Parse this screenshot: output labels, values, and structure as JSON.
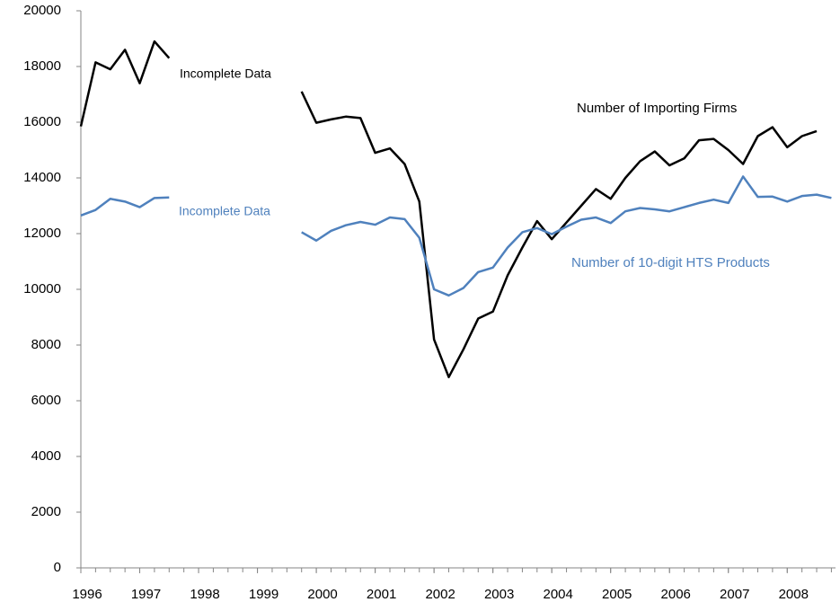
{
  "chart_data": {
    "type": "line",
    "x": [
      1996,
      1996.25,
      1996.5,
      1996.75,
      1997,
      1997.25,
      1997.5,
      1997.75,
      1998,
      1998.25,
      1998.5,
      1998.75,
      1999,
      1999.25,
      1999.5,
      1999.75,
      2000,
      2000.25,
      2000.5,
      2000.75,
      2001,
      2001.25,
      2001.5,
      2001.75,
      2002,
      2002.25,
      2002.5,
      2002.75,
      2003,
      2003.25,
      2003.5,
      2003.75,
      2004,
      2004.25,
      2004.5,
      2004.75,
      2005,
      2005.25,
      2005.5,
      2005.75,
      2006,
      2006.25,
      2006.5,
      2006.75,
      2007,
      2007.25,
      2007.5,
      2007.75,
      2008,
      2008.25,
      2008.5,
      2008.75
    ],
    "series": [
      {
        "name": "Number of Importing Firms",
        "color": "#000000",
        "values": [
          15850,
          18150,
          17900,
          18600,
          17400,
          18900,
          18300,
          null,
          null,
          null,
          null,
          null,
          null,
          null,
          null,
          17100,
          15980,
          16100,
          16200,
          16150,
          14900,
          15060,
          14500,
          13150,
          8200,
          6850,
          7850,
          8950,
          9200,
          10500,
          11500,
          12450,
          11800,
          12400,
          13000,
          13600,
          13250,
          14000,
          14600,
          14950,
          14450,
          14700,
          15350,
          15400,
          15000,
          14500,
          15500,
          15820,
          15100,
          15500,
          15680,
          null
        ]
      },
      {
        "name": "Number of 10-digit HTS Products",
        "color": "#4f81bd",
        "values": [
          12650,
          12850,
          13250,
          13150,
          12950,
          13280,
          13300,
          null,
          null,
          null,
          null,
          null,
          null,
          null,
          null,
          12050,
          11750,
          12100,
          12300,
          12420,
          12320,
          12580,
          12520,
          11850,
          10000,
          9780,
          10050,
          10620,
          10780,
          11500,
          12050,
          12200,
          11980,
          12250,
          12500,
          12580,
          12380,
          12800,
          12920,
          12870,
          12800,
          12950,
          13100,
          13220,
          13100,
          14050,
          13320,
          13330,
          13150,
          13350,
          13400,
          13280
        ]
      }
    ],
    "annotations": [
      "Incomplete Data",
      "Incomplete Data"
    ],
    "xlim": [
      1996,
      2008.82
    ],
    "xticks": [
      1996,
      1997,
      1998,
      1999,
      2000,
      2001,
      2002,
      2003,
      2004,
      2005,
      2006,
      2007,
      2008
    ],
    "ylim": [
      0,
      20000
    ],
    "yticks": [
      0,
      2000,
      4000,
      6000,
      8000,
      10000,
      12000,
      14000,
      16000,
      18000,
      20000
    ],
    "grid": false
  }
}
